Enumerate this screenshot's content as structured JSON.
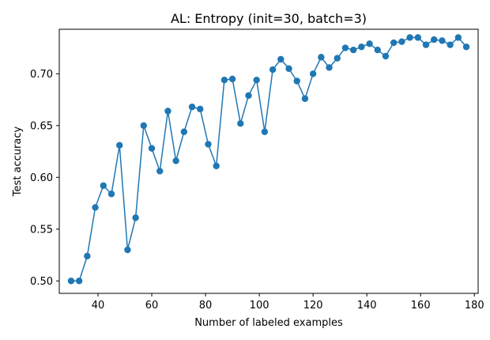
{
  "chart_data": {
    "type": "line",
    "title": "AL: Entropy (init=30, batch=3)",
    "xlabel": "Number of labeled examples",
    "ylabel": "Test accuracy",
    "xlim": [
      25.6,
      181.4
    ],
    "ylim": [
      0.488,
      0.743
    ],
    "xticks": [
      40,
      60,
      80,
      100,
      120,
      140,
      160,
      180
    ],
    "yticks": [
      0.5,
      0.55,
      0.6,
      0.65,
      0.7
    ],
    "xtick_labels": [
      "40",
      "60",
      "80",
      "100",
      "120",
      "140",
      "160",
      "180"
    ],
    "ytick_labels": [
      "0.50",
      "0.55",
      "0.60",
      "0.65",
      "0.70"
    ],
    "grid": false,
    "marker": "circle",
    "color": "#1f77b4",
    "series": [
      {
        "x": [
          30,
          33,
          36,
          39,
          42,
          45,
          48,
          51,
          54,
          57,
          60,
          63,
          66,
          69,
          72,
          75,
          78,
          81,
          84,
          87,
          90,
          93,
          96,
          99,
          102,
          105,
          108,
          111,
          114,
          117,
          120,
          123,
          126,
          129,
          132,
          135,
          138,
          141,
          144,
          147,
          150,
          153,
          156,
          159,
          162,
          165,
          168,
          171,
          174,
          177
        ],
        "y": [
          0.5,
          0.5,
          0.524,
          0.571,
          0.592,
          0.584,
          0.631,
          0.53,
          0.561,
          0.65,
          0.628,
          0.606,
          0.664,
          0.616,
          0.644,
          0.668,
          0.666,
          0.632,
          0.611,
          0.694,
          0.695,
          0.652,
          0.679,
          0.694,
          0.644,
          0.704,
          0.714,
          0.705,
          0.693,
          0.676,
          0.7,
          0.716,
          0.706,
          0.715,
          0.725,
          0.723,
          0.726,
          0.729,
          0.723,
          0.717,
          0.73,
          0.731,
          0.735,
          0.735,
          0.728,
          0.733,
          0.732,
          0.728,
          0.735,
          0.726
        ]
      }
    ]
  }
}
